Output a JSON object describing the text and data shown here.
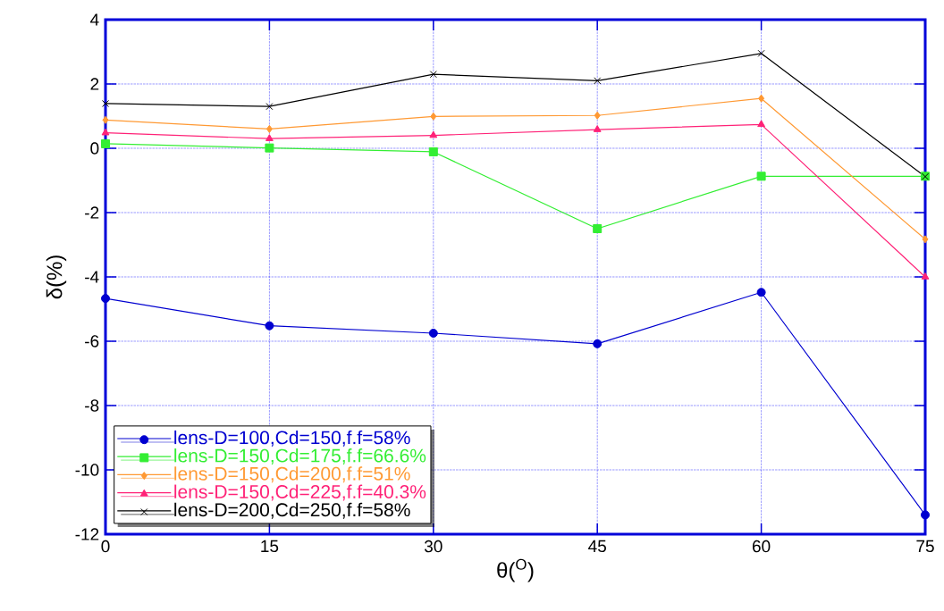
{
  "chart_data": {
    "type": "line",
    "xlabel": "θ($^{O}$)",
    "ylabel": "δ(%)",
    "x": [
      0,
      15,
      30,
      45,
      60,
      75
    ],
    "xlim": [
      0,
      75
    ],
    "xticks": [
      0,
      15,
      30,
      45,
      60,
      75
    ],
    "ylim": [
      -12,
      4
    ],
    "yticks": [
      -12,
      -10,
      -8,
      -6,
      -4,
      -2,
      0,
      2,
      4
    ],
    "grid": true,
    "legend": "bottom left",
    "line_style": "solid",
    "series": [
      {
        "name": "lens-D=100,Cd=150,f.f=58%",
        "color": "#0000d0",
        "marker": "circle",
        "values": [
          -4.67,
          -5.52,
          -5.75,
          -6.08,
          -4.48,
          -11.4
        ]
      },
      {
        "name": "lens-D=150,Cd=175,f.f=66.6%",
        "color": "#33ee33",
        "marker": "square",
        "values": [
          0.14,
          0.01,
          -0.11,
          -2.5,
          -0.87,
          -0.87
        ]
      },
      {
        "name": "lens-D=150,Cd=200,f.f=51%",
        "color": "#ff9933",
        "marker": "diamond",
        "values": [
          0.88,
          0.6,
          0.99,
          1.02,
          1.55,
          -2.83
        ]
      },
      {
        "name": "lens-D=150,Cd=225,f.f=40.3%",
        "color": "#ff2277",
        "marker": "triangle",
        "values": [
          0.48,
          0.3,
          0.4,
          0.58,
          0.74,
          -4.0
        ]
      },
      {
        "name": "lens-D=200,Cd=250,f.f=58%",
        "color": "#000000",
        "marker": "cross",
        "values": [
          1.39,
          1.3,
          2.3,
          2.1,
          2.95,
          -0.88
        ]
      }
    ]
  }
}
